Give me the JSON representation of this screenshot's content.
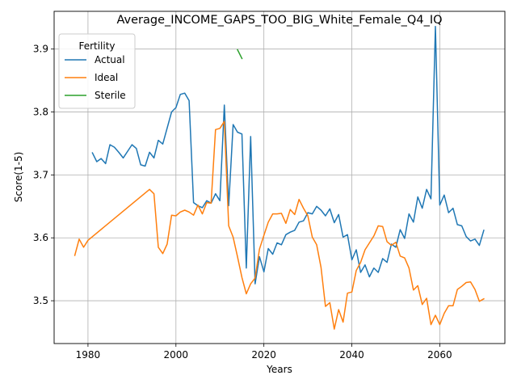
{
  "chart_data": {
    "type": "line",
    "title": "Average_INCOME_GAPS_TOO_BIG_White_Female_Q4_IQ",
    "xlabel": "Years",
    "ylabel": "Score(1-5)",
    "xlim": [
      1972.3,
      2074.8
    ],
    "ylim": [
      3.432,
      3.96
    ],
    "xticks": [
      1980,
      2000,
      2020,
      2040,
      2060
    ],
    "yticks": [
      3.5,
      3.6,
      3.7,
      3.8,
      3.9
    ],
    "grid": true,
    "legend": {
      "title": "Fertility",
      "placement": "top-left"
    },
    "series": [
      {
        "name": "Actual",
        "color": "#1f77b4",
        "x": [
          1981,
          1982,
          1983,
          1984,
          1985,
          1986,
          1987,
          1988,
          1990,
          1991,
          1992,
          1993,
          1994,
          1995,
          1996,
          1997,
          1999,
          2000,
          2001,
          2002,
          2003,
          2004,
          2005,
          2006,
          2007,
          2008,
          2009,
          2010,
          2011,
          2012,
          2013,
          2014,
          2015,
          2016,
          2017,
          2018,
          2019,
          2020,
          2021,
          2022,
          2023,
          2024,
          2025,
          2026,
          2027,
          2028,
          2029,
          2030,
          2031,
          2032,
          2033,
          2034,
          2035,
          2036,
          2037,
          2038,
          2039,
          2040,
          2041,
          2042,
          2043,
          2044,
          2045,
          2046,
          2047,
          2048,
          2049,
          2050,
          2051,
          2052,
          2053,
          2054,
          2055,
          2056,
          2057,
          2058,
          2059,
          2060,
          2061,
          2062,
          2063,
          2064,
          2065,
          2066,
          2067,
          2068,
          2069,
          2070
        ],
        "y": [
          3.735,
          3.721,
          3.726,
          3.718,
          3.748,
          3.744,
          3.736,
          3.727,
          3.748,
          3.742,
          3.716,
          3.714,
          3.736,
          3.727,
          3.755,
          3.749,
          3.8,
          3.807,
          3.828,
          3.83,
          3.818,
          3.656,
          3.651,
          3.648,
          3.659,
          3.655,
          3.67,
          3.659,
          3.811,
          3.651,
          3.78,
          3.768,
          3.765,
          3.552,
          3.761,
          3.527,
          3.57,
          3.546,
          3.583,
          3.574,
          3.592,
          3.589,
          3.605,
          3.609,
          3.612,
          3.625,
          3.627,
          3.64,
          3.638,
          3.65,
          3.644,
          3.635,
          3.646,
          3.624,
          3.637,
          3.601,
          3.605,
          3.565,
          3.581,
          3.545,
          3.557,
          3.538,
          3.552,
          3.545,
          3.567,
          3.561,
          3.59,
          3.585,
          3.613,
          3.599,
          3.638,
          3.625,
          3.665,
          3.647,
          3.677,
          3.662,
          3.936,
          3.652,
          3.668,
          3.64,
          3.647,
          3.621,
          3.619,
          3.602,
          3.595,
          3.598,
          3.588,
          3.612
        ]
      },
      {
        "name": "Ideal",
        "color": "#ff7f0e",
        "x": [
          1977,
          1978,
          1979,
          1980,
          1994,
          1995,
          1996,
          1997,
          1998,
          1999,
          2000,
          2001,
          2002,
          2003,
          2004,
          2005,
          2006,
          2007,
          2008,
          2009,
          2010,
          2011,
          2012,
          2013,
          2014,
          2015,
          2016,
          2017,
          2018,
          2019,
          2020,
          2021,
          2022,
          2023,
          2024,
          2025,
          2026,
          2027,
          2028,
          2029,
          2030,
          2031,
          2032,
          2033,
          2034,
          2035,
          2036,
          2037,
          2038,
          2039,
          2040,
          2041,
          2042,
          2043,
          2044,
          2045,
          2046,
          2047,
          2048,
          2049,
          2050,
          2051,
          2052,
          2053,
          2054,
          2055,
          2056,
          2057,
          2058,
          2059,
          2060,
          2061,
          2062,
          2063,
          2064,
          2065,
          2066,
          2067,
          2068,
          2069,
          2070
        ],
        "y": [
          3.572,
          3.598,
          3.585,
          3.596,
          3.677,
          3.67,
          3.585,
          3.575,
          3.59,
          3.636,
          3.635,
          3.641,
          3.644,
          3.641,
          3.636,
          3.652,
          3.638,
          3.656,
          3.655,
          3.772,
          3.774,
          3.785,
          3.619,
          3.601,
          3.57,
          3.537,
          3.511,
          3.527,
          3.536,
          3.582,
          3.604,
          3.625,
          3.638,
          3.638,
          3.639,
          3.623,
          3.645,
          3.637,
          3.661,
          3.647,
          3.635,
          3.601,
          3.589,
          3.553,
          3.491,
          3.497,
          3.455,
          3.486,
          3.466,
          3.512,
          3.514,
          3.548,
          3.561,
          3.581,
          3.592,
          3.603,
          3.619,
          3.618,
          3.594,
          3.588,
          3.593,
          3.571,
          3.568,
          3.552,
          3.517,
          3.524,
          3.494,
          3.504,
          3.462,
          3.477,
          3.462,
          3.48,
          3.492,
          3.492,
          3.518,
          3.523,
          3.529,
          3.53,
          3.518,
          3.499,
          3.503
        ]
      },
      {
        "name": "Sterile",
        "color": "#2ca02c",
        "x": [
          2014,
          2015
        ],
        "y": [
          3.899,
          3.885
        ]
      }
    ]
  }
}
